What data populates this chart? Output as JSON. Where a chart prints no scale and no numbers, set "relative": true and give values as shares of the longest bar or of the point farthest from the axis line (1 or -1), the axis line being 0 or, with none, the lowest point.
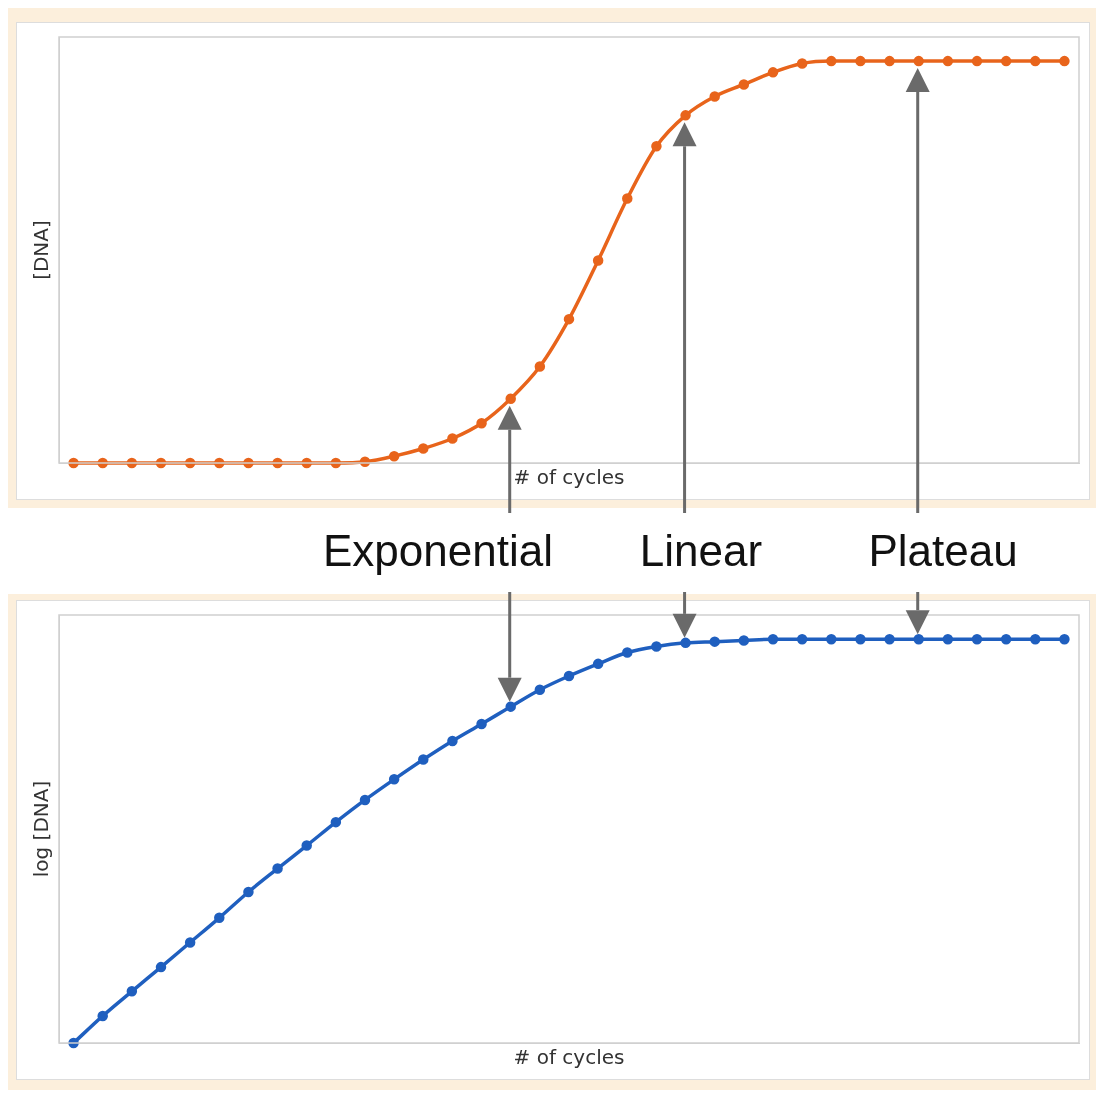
{
  "chart_data": [
    {
      "type": "line",
      "relative": true,
      "xlabel": "# of cycles",
      "ylabel": "[DNA]",
      "marker": "circle",
      "line_style": "solid",
      "annotations": [
        "Exponential",
        "Linear",
        "Plateau"
      ],
      "categories": [
        null,
        null,
        null,
        null,
        null,
        null,
        null,
        null,
        null,
        null,
        null,
        null,
        null,
        null,
        null,
        null,
        null,
        null,
        null,
        null,
        null,
        null,
        null,
        null,
        null,
        null,
        null,
        null,
        null,
        null,
        null,
        null,
        null,
        null,
        null
      ],
      "series": [
        {
          "color": "#e8641b",
          "values": [
            0,
            0,
            0,
            0,
            0,
            0,
            0,
            0,
            0,
            0,
            0.003,
            0.017,
            0.036,
            0.061,
            0.099,
            0.16,
            0.24,
            0.358,
            0.504,
            0.658,
            0.788,
            0.865,
            0.912,
            0.942,
            0.972,
            0.994,
            1,
            1,
            1,
            1,
            1,
            1,
            1,
            1,
            1
          ]
        }
      ]
    },
    {
      "type": "line",
      "relative": true,
      "xlabel": "# of cycles",
      "ylabel": "log [DNA]",
      "marker": "circle",
      "line_style": "solid",
      "categories": [
        null,
        null,
        null,
        null,
        null,
        null,
        null,
        null,
        null,
        null,
        null,
        null,
        null,
        null,
        null,
        null,
        null,
        null,
        null,
        null,
        null,
        null,
        null,
        null,
        null,
        null,
        null,
        null,
        null,
        null,
        null,
        null,
        null,
        null,
        null
      ],
      "series": [
        {
          "color": "#1f5fbf",
          "values": [
            0,
            0.067,
            0.128,
            0.188,
            0.249,
            0.31,
            0.374,
            0.432,
            0.489,
            0.547,
            0.602,
            0.653,
            0.702,
            0.748,
            0.79,
            0.833,
            0.875,
            0.909,
            0.939,
            0.967,
            0.982,
            0.991,
            0.994,
            0.997,
            1,
            1,
            1,
            1,
            1,
            1,
            1,
            1,
            1,
            1,
            1
          ]
        }
      ]
    }
  ]
}
